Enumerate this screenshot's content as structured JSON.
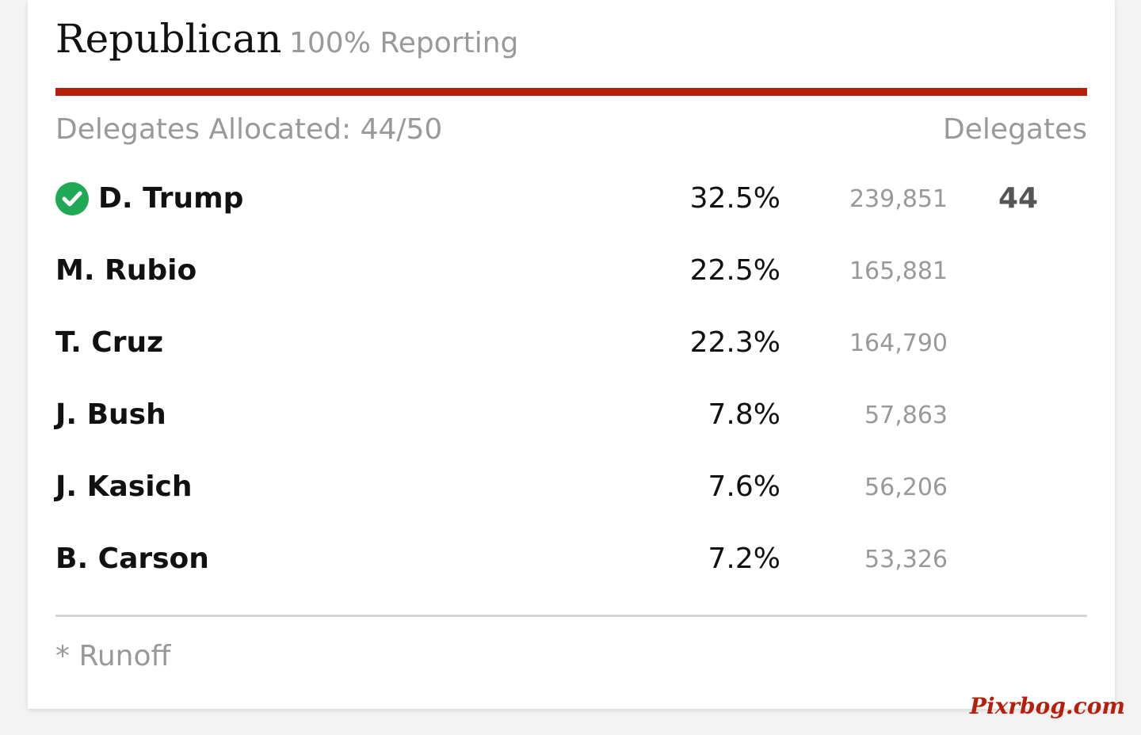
{
  "header": {
    "title": "Republican",
    "reporting": "100% Reporting"
  },
  "table": {
    "allocated": "Delegates Allocated: 44/50",
    "delegates_header": "Delegates",
    "rows": [
      {
        "name": "D. Trump",
        "winner": true,
        "percent": "32.5%",
        "votes": "239,851",
        "delegates": "44"
      },
      {
        "name": "M. Rubio",
        "percent": "22.5%",
        "votes": "165,881"
      },
      {
        "name": "T. Cruz",
        "percent": "22.3%",
        "votes": "164,790"
      },
      {
        "name": "J. Bush",
        "percent": "7.8%",
        "votes": "57,863"
      },
      {
        "name": "J. Kasich",
        "percent": "7.6%",
        "votes": "56,206"
      },
      {
        "name": "B. Carson",
        "percent": "7.2%",
        "votes": "53,326"
      }
    ]
  },
  "footnote": "* Runoff",
  "watermark": "Pixrbog.com"
}
